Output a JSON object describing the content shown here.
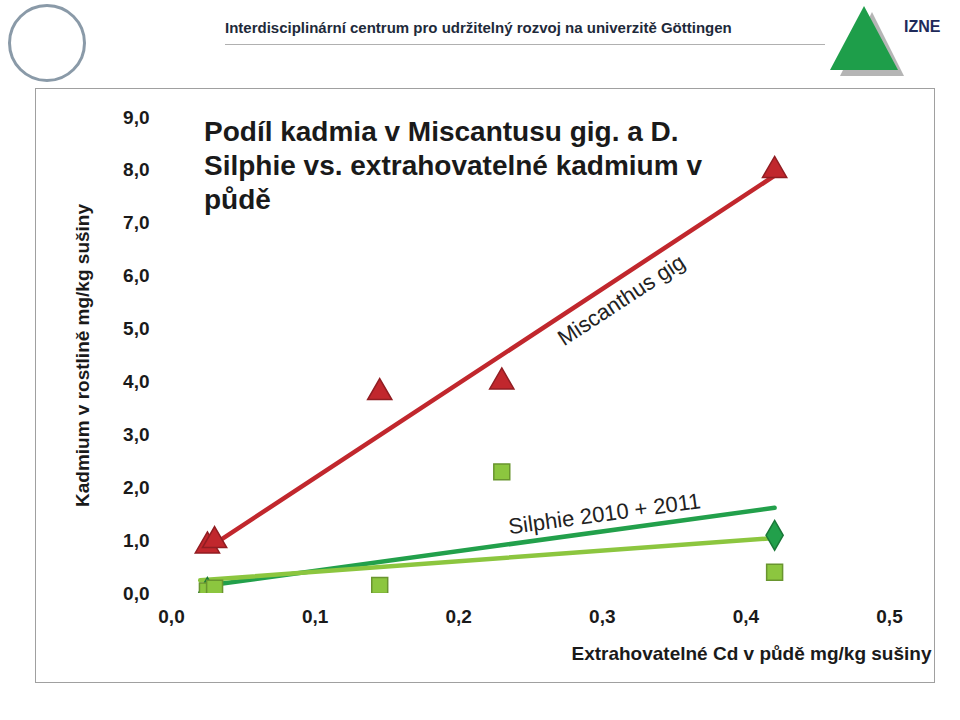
{
  "header": {
    "title": "Interdisciplinární centrum pro udržitelný rozvoj na univerzitě Göttingen",
    "logo": "IZNE"
  },
  "chart_data": {
    "type": "scatter",
    "title": "Podíl kadmia v Miscantusu gig. a D. Silphie vs. extrahovatelné kadmium v půdě",
    "x_label": "Extrahovatelné Cd v půdě mg/kg sušiny",
    "y_label": "Kadmium v rostlině mg/kg sušiny",
    "xlim": [
      0,
      0.5
    ],
    "xticks": [
      {
        "value": 0,
        "label": "0,0"
      },
      {
        "value": 0.1,
        "label": "0,1"
      },
      {
        "value": 0.2,
        "label": "0,2"
      },
      {
        "value": 0.3,
        "label": "0,3"
      },
      {
        "value": 0.4,
        "label": "0,4"
      },
      {
        "value": 0.5,
        "label": "0,5"
      }
    ],
    "ylim": [
      0,
      9
    ],
    "yticks": [
      {
        "value": 0,
        "label": "0,0"
      },
      {
        "value": 1,
        "label": "1,0"
      },
      {
        "value": 2,
        "label": "2,0"
      },
      {
        "value": 3,
        "label": "3,0"
      },
      {
        "value": 4,
        "label": "4,0"
      },
      {
        "value": 5,
        "label": "5,0"
      },
      {
        "value": 6,
        "label": "6,0"
      },
      {
        "value": 7,
        "label": "7,0"
      },
      {
        "value": 8,
        "label": "8,0"
      },
      {
        "value": 9,
        "label": "9,0"
      }
    ],
    "grid": false,
    "series": [
      {
        "name": "Miscanthus gig",
        "color": "#c1272d",
        "marker": "triangle",
        "x": [
          0.025,
          0.03,
          0.145,
          0.23,
          0.42
        ],
        "values": [
          0.9,
          1.0,
          3.8,
          4.0,
          8.0
        ],
        "trend": {
          "x": [
            0.025,
            0.42
          ],
          "values": [
            0.85,
            7.9
          ]
        }
      },
      {
        "name": "Silphie 2010 + 2011",
        "color": "#22a04b",
        "marker": "diamond",
        "x": [
          0.025,
          0.42
        ],
        "values": [
          0.02,
          1.1
        ],
        "trend": {
          "x": [
            0.025,
            0.42
          ],
          "values": [
            0.15,
            1.62
          ]
        }
      },
      {
        "color": "#8cc63f",
        "marker": "square",
        "x": [
          0.025,
          0.03,
          0.145,
          0.23,
          0.42
        ],
        "values": [
          0.05,
          0.1,
          0.15,
          2.3,
          0.4
        ],
        "trend": {
          "x": [
            0.02,
            0.42
          ],
          "values": [
            0.25,
            1.05
          ]
        }
      }
    ]
  }
}
